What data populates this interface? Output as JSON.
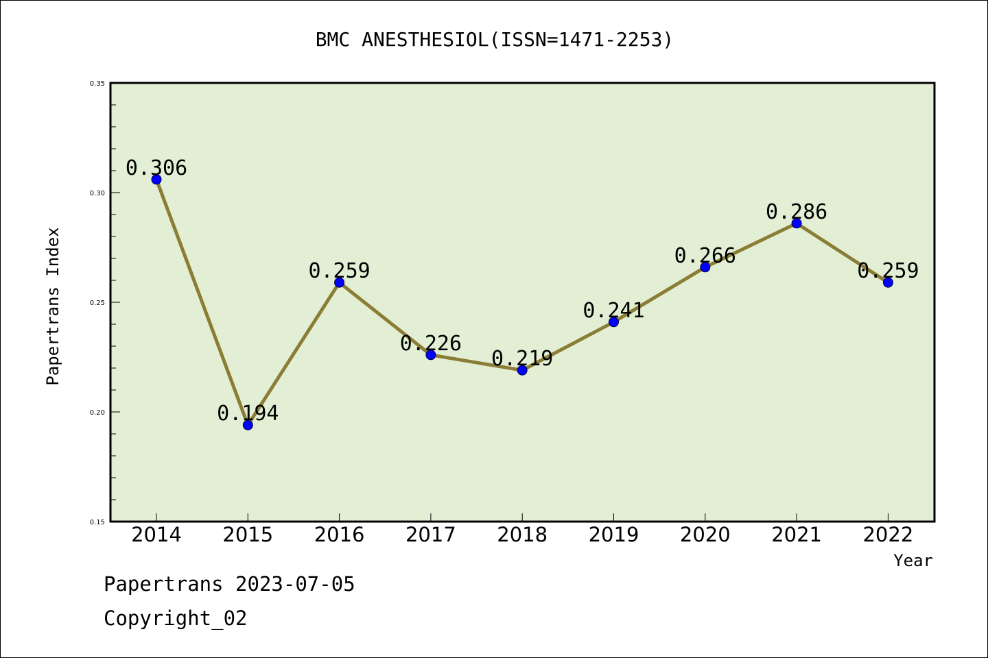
{
  "chart_data": {
    "type": "line",
    "title": "BMC ANESTHESIOL(ISSN=1471-2253)",
    "xlabel": "Year",
    "ylabel": "Papertrans Index",
    "categories": [
      "2014",
      "2015",
      "2016",
      "2017",
      "2018",
      "2019",
      "2020",
      "2021",
      "2022"
    ],
    "series": [
      {
        "values": [
          0.306,
          0.194,
          0.259,
          0.226,
          0.219,
          0.241,
          0.266,
          0.286,
          0.259
        ]
      }
    ],
    "data_labels": [
      "0.306",
      "0.194",
      "0.259",
      "0.226",
      "0.219",
      "0.241",
      "0.266",
      "0.286",
      "0.259"
    ],
    "ylim": [
      0.15,
      0.35
    ],
    "yticks": [
      0.15,
      0.2,
      0.25,
      0.3,
      0.35
    ],
    "ytick_labels": [
      "0.15",
      "0.20",
      "0.25",
      "0.30",
      "0.35"
    ],
    "grid": false,
    "colors": {
      "plot_background": "#e2efd5",
      "line": "#8b7d35",
      "marker": "#0000ff"
    }
  },
  "footer": {
    "date_line": "Papertrans 2023-07-05",
    "copyright": "Copyright_02"
  }
}
